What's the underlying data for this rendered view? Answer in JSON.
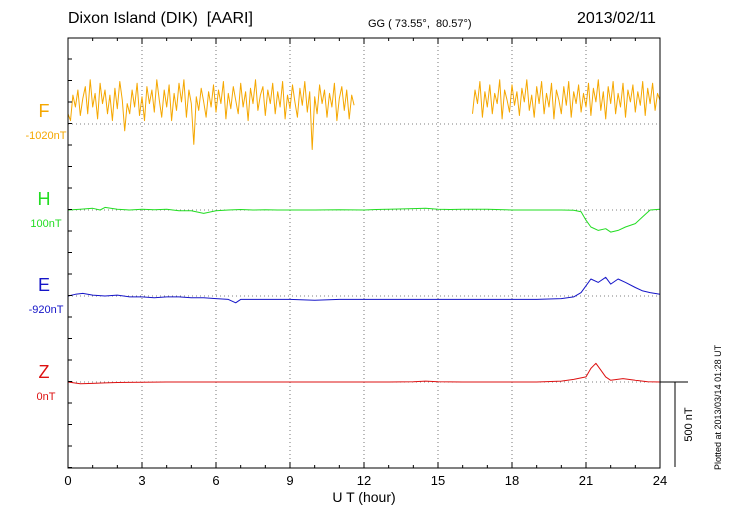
{
  "header": {
    "station": "Dixon Island (DIK)  [AARI]",
    "coords": "GG ( 73.55°,  80.57°)",
    "date": "2013/02/11"
  },
  "footer": {
    "plotted": "Plotted at 2013/03/14 01:28 UT"
  },
  "colors": {
    "F": "#f5a700",
    "H": "#22dd22",
    "E": "#1515c8",
    "Z": "#dd1111"
  },
  "chart_data": {
    "type": "line",
    "xlabel": "U T (hour)",
    "xlim": [
      0,
      24
    ],
    "x_ticks": [
      "0",
      "3",
      "6",
      "9",
      "12",
      "15",
      "18",
      "21",
      "24"
    ],
    "scale_bar": "500 nT",
    "series": [
      {
        "name": "F",
        "offset_label": "-1020nT",
        "color": "#f5a700",
        "gaps": [
          [
            11.6,
            16.4
          ]
        ],
        "points": [
          [
            0,
            60
          ],
          [
            0.1,
            20
          ],
          [
            0.2,
            170
          ],
          [
            0.3,
            100
          ],
          [
            0.4,
            200
          ],
          [
            0.5,
            50
          ],
          [
            0.6,
            150
          ],
          [
            0.7,
            220
          ],
          [
            0.8,
            60
          ],
          [
            0.9,
            260
          ],
          [
            1.0,
            100
          ],
          [
            1.1,
            180
          ],
          [
            1.2,
            30
          ],
          [
            1.3,
            240
          ],
          [
            1.4,
            120
          ],
          [
            1.5,
            200
          ],
          [
            1.6,
            60
          ],
          [
            1.7,
            170
          ],
          [
            1.8,
            20
          ],
          [
            1.9,
            210
          ],
          [
            2.0,
            90
          ],
          [
            2.1,
            250
          ],
          [
            2.2,
            140
          ],
          [
            2.3,
            -40
          ],
          [
            2.4,
            120
          ],
          [
            2.5,
            60
          ],
          [
            2.6,
            200
          ],
          [
            2.7,
            100
          ],
          [
            2.8,
            240
          ],
          [
            2.9,
            50
          ],
          [
            3.0,
            160
          ],
          [
            3.1,
            20
          ],
          [
            3.2,
            220
          ],
          [
            3.3,
            120
          ],
          [
            3.4,
            200
          ],
          [
            3.5,
            70
          ],
          [
            3.6,
            260
          ],
          [
            3.7,
            140
          ],
          [
            3.8,
            40
          ],
          [
            3.9,
            200
          ],
          [
            4.0,
            100
          ],
          [
            4.1,
            230
          ],
          [
            4.2,
            20
          ],
          [
            4.3,
            180
          ],
          [
            4.4,
            80
          ],
          [
            4.5,
            240
          ],
          [
            4.6,
            130
          ],
          [
            4.7,
            260
          ],
          [
            4.8,
            40
          ],
          [
            4.9,
            200
          ],
          [
            5.0,
            120
          ],
          [
            5.1,
            -120
          ],
          [
            5.2,
            160
          ],
          [
            5.3,
            80
          ],
          [
            5.4,
            210
          ],
          [
            5.5,
            130
          ],
          [
            5.6,
            40
          ],
          [
            5.7,
            190
          ],
          [
            5.8,
            100
          ],
          [
            5.9,
            230
          ],
          [
            6.0,
            70
          ],
          [
            6.1,
            200
          ],
          [
            6.2,
            120
          ],
          [
            6.3,
            250
          ],
          [
            6.4,
            30
          ],
          [
            6.5,
            180
          ],
          [
            6.6,
            90
          ],
          [
            6.7,
            220
          ],
          [
            6.8,
            140
          ],
          [
            6.9,
            60
          ],
          [
            7.0,
            240
          ],
          [
            7.1,
            100
          ],
          [
            7.2,
            190
          ],
          [
            7.3,
            20
          ],
          [
            7.4,
            210
          ],
          [
            7.5,
            120
          ],
          [
            7.6,
            260
          ],
          [
            7.7,
            80
          ],
          [
            7.8,
            170
          ],
          [
            7.9,
            220
          ],
          [
            8.0,
            50
          ],
          [
            8.1,
            200
          ],
          [
            8.2,
            120
          ],
          [
            8.3,
            240
          ],
          [
            8.4,
            60
          ],
          [
            8.5,
            190
          ],
          [
            8.6,
            100
          ],
          [
            8.7,
            250
          ],
          [
            8.8,
            30
          ],
          [
            8.9,
            170
          ],
          [
            9.0,
            90
          ],
          [
            9.1,
            230
          ],
          [
            9.2,
            130
          ],
          [
            9.3,
            40
          ],
          [
            9.4,
            210
          ],
          [
            9.5,
            110
          ],
          [
            9.6,
            250
          ],
          [
            9.7,
            70
          ],
          [
            9.8,
            190
          ],
          [
            9.9,
            -150
          ],
          [
            10.0,
            160
          ],
          [
            10.1,
            60
          ],
          [
            10.2,
            230
          ],
          [
            10.3,
            120
          ],
          [
            10.4,
            200
          ],
          [
            10.5,
            40
          ],
          [
            10.6,
            180
          ],
          [
            10.7,
            100
          ],
          [
            10.8,
            240
          ],
          [
            10.9,
            20
          ],
          [
            11.0,
            150
          ],
          [
            11.1,
            220
          ],
          [
            11.2,
            80
          ],
          [
            11.3,
            200
          ],
          [
            11.4,
            30
          ],
          [
            11.5,
            170
          ],
          [
            11.6,
            110
          ],
          [
            16.4,
            60
          ],
          [
            16.5,
            200
          ],
          [
            16.6,
            120
          ],
          [
            16.7,
            250
          ],
          [
            16.8,
            40
          ],
          [
            16.9,
            190
          ],
          [
            17.0,
            100
          ],
          [
            17.1,
            230
          ],
          [
            17.2,
            60
          ],
          [
            17.3,
            180
          ],
          [
            17.4,
            120
          ],
          [
            17.5,
            260
          ],
          [
            17.6,
            30
          ],
          [
            17.7,
            200
          ],
          [
            17.8,
            140
          ],
          [
            17.9,
            70
          ],
          [
            18.0,
            230
          ],
          [
            18.1,
            110
          ],
          [
            18.2,
            190
          ],
          [
            18.3,
            50
          ],
          [
            18.4,
            210
          ],
          [
            18.5,
            130
          ],
          [
            18.6,
            260
          ],
          [
            18.7,
            80
          ],
          [
            18.8,
            170
          ],
          [
            18.9,
            40
          ],
          [
            19.0,
            220
          ],
          [
            19.1,
            120
          ],
          [
            19.2,
            250
          ],
          [
            19.3,
            60
          ],
          [
            19.4,
            180
          ],
          [
            19.5,
            100
          ],
          [
            19.6,
            240
          ],
          [
            19.7,
            30
          ],
          [
            19.8,
            200
          ],
          [
            19.9,
            140
          ],
          [
            20.0,
            60
          ],
          [
            20.1,
            220
          ],
          [
            20.2,
            110
          ],
          [
            20.3,
            250
          ],
          [
            20.4,
            40
          ],
          [
            20.5,
            190
          ],
          [
            20.6,
            120
          ],
          [
            20.7,
            230
          ],
          [
            20.8,
            70
          ],
          [
            20.9,
            180
          ],
          [
            21.0,
            100
          ],
          [
            21.1,
            240
          ],
          [
            21.2,
            50
          ],
          [
            21.3,
            210
          ],
          [
            21.4,
            130
          ],
          [
            21.5,
            260
          ],
          [
            21.6,
            80
          ],
          [
            21.7,
            190
          ],
          [
            21.8,
            30
          ],
          [
            21.9,
            220
          ],
          [
            22.0,
            120
          ],
          [
            22.1,
            250
          ],
          [
            22.2,
            60
          ],
          [
            22.3,
            180
          ],
          [
            22.4,
            100
          ],
          [
            22.5,
            240
          ],
          [
            22.6,
            40
          ],
          [
            22.7,
            200
          ],
          [
            22.8,
            130
          ],
          [
            22.9,
            230
          ],
          [
            23.0,
            70
          ],
          [
            23.1,
            190
          ],
          [
            23.2,
            110
          ],
          [
            23.3,
            250
          ],
          [
            23.4,
            50
          ],
          [
            23.5,
            210
          ],
          [
            23.6,
            120
          ],
          [
            23.7,
            240
          ],
          [
            23.8,
            80
          ],
          [
            23.9,
            180
          ],
          [
            24.0,
            140
          ]
        ]
      },
      {
        "name": "H",
        "offset_label": "100nT",
        "color": "#22dd22",
        "points": [
          [
            0,
            0
          ],
          [
            0.5,
            5
          ],
          [
            1.0,
            10
          ],
          [
            1.3,
            0
          ],
          [
            1.5,
            15
          ],
          [
            2.0,
            5
          ],
          [
            2.5,
            0
          ],
          [
            3.0,
            5
          ],
          [
            3.5,
            2
          ],
          [
            4.0,
            5
          ],
          [
            4.5,
            -5
          ],
          [
            5.0,
            -5
          ],
          [
            5.5,
            -20
          ],
          [
            6.0,
            -5
          ],
          [
            6.5,
            0
          ],
          [
            7.0,
            3
          ],
          [
            7.5,
            0
          ],
          [
            8.0,
            2
          ],
          [
            8.5,
            0
          ],
          [
            9.0,
            0
          ],
          [
            10.0,
            0
          ],
          [
            11.0,
            2
          ],
          [
            12.0,
            0
          ],
          [
            12.5,
            3
          ],
          [
            13.0,
            5
          ],
          [
            14.0,
            8
          ],
          [
            14.5,
            10
          ],
          [
            15.0,
            5
          ],
          [
            15.5,
            3
          ],
          [
            16.0,
            5
          ],
          [
            17.0,
            5
          ],
          [
            18.0,
            0
          ],
          [
            19.0,
            0
          ],
          [
            20.0,
            0
          ],
          [
            20.5,
            -2
          ],
          [
            20.8,
            -10
          ],
          [
            21.0,
            -60
          ],
          [
            21.2,
            -100
          ],
          [
            21.5,
            -120
          ],
          [
            21.8,
            -110
          ],
          [
            22.0,
            -130
          ],
          [
            22.3,
            -120
          ],
          [
            22.6,
            -100
          ],
          [
            23.0,
            -80
          ],
          [
            23.3,
            -40
          ],
          [
            23.6,
            0
          ],
          [
            24.0,
            5
          ]
        ]
      },
      {
        "name": "E",
        "offset_label": "-920nT",
        "color": "#1515c8",
        "points": [
          [
            0,
            0
          ],
          [
            0.3,
            10
          ],
          [
            0.6,
            15
          ],
          [
            1.0,
            5
          ],
          [
            1.5,
            0
          ],
          [
            2.0,
            5
          ],
          [
            2.5,
            -5
          ],
          [
            3.0,
            -5
          ],
          [
            3.5,
            -10
          ],
          [
            4.0,
            -5
          ],
          [
            4.5,
            -5
          ],
          [
            5.0,
            -10
          ],
          [
            5.5,
            -10
          ],
          [
            6.0,
            -15
          ],
          [
            6.5,
            -20
          ],
          [
            6.8,
            -40
          ],
          [
            7.0,
            -20
          ],
          [
            7.5,
            -20
          ],
          [
            8.0,
            -20
          ],
          [
            9.0,
            -20
          ],
          [
            10.0,
            -25
          ],
          [
            11.0,
            -20
          ],
          [
            12.0,
            -20
          ],
          [
            13.0,
            -20
          ],
          [
            14.0,
            -20
          ],
          [
            15.0,
            -20
          ],
          [
            16.0,
            -20
          ],
          [
            17.0,
            -20
          ],
          [
            18.0,
            -20
          ],
          [
            19.0,
            -20
          ],
          [
            20.0,
            -15
          ],
          [
            20.5,
            -5
          ],
          [
            20.8,
            20
          ],
          [
            21.0,
            60
          ],
          [
            21.2,
            100
          ],
          [
            21.5,
            80
          ],
          [
            21.8,
            110
          ],
          [
            22.0,
            70
          ],
          [
            22.3,
            100
          ],
          [
            22.6,
            80
          ],
          [
            23.0,
            50
          ],
          [
            23.3,
            30
          ],
          [
            23.6,
            20
          ],
          [
            24.0,
            10
          ]
        ]
      },
      {
        "name": "Z",
        "offset_label": "0nT",
        "color": "#dd1111",
        "points": [
          [
            0,
            0
          ],
          [
            0.5,
            -10
          ],
          [
            1.0,
            -8
          ],
          [
            1.5,
            -5
          ],
          [
            2.0,
            -3
          ],
          [
            3.0,
            -2
          ],
          [
            4.0,
            0
          ],
          [
            5.0,
            0
          ],
          [
            6.0,
            0
          ],
          [
            8.0,
            0
          ],
          [
            10.0,
            0
          ],
          [
            12.0,
            0
          ],
          [
            13.0,
            0
          ],
          [
            14.0,
            2
          ],
          [
            14.5,
            5
          ],
          [
            15.0,
            2
          ],
          [
            16.0,
            0
          ],
          [
            18.0,
            0
          ],
          [
            19.0,
            0
          ],
          [
            20.0,
            5
          ],
          [
            20.5,
            15
          ],
          [
            21.0,
            30
          ],
          [
            21.2,
            80
          ],
          [
            21.4,
            110
          ],
          [
            21.6,
            70
          ],
          [
            21.8,
            30
          ],
          [
            22.0,
            10
          ],
          [
            22.5,
            20
          ],
          [
            23.0,
            10
          ],
          [
            23.5,
            2
          ],
          [
            24.0,
            0
          ]
        ]
      }
    ]
  }
}
